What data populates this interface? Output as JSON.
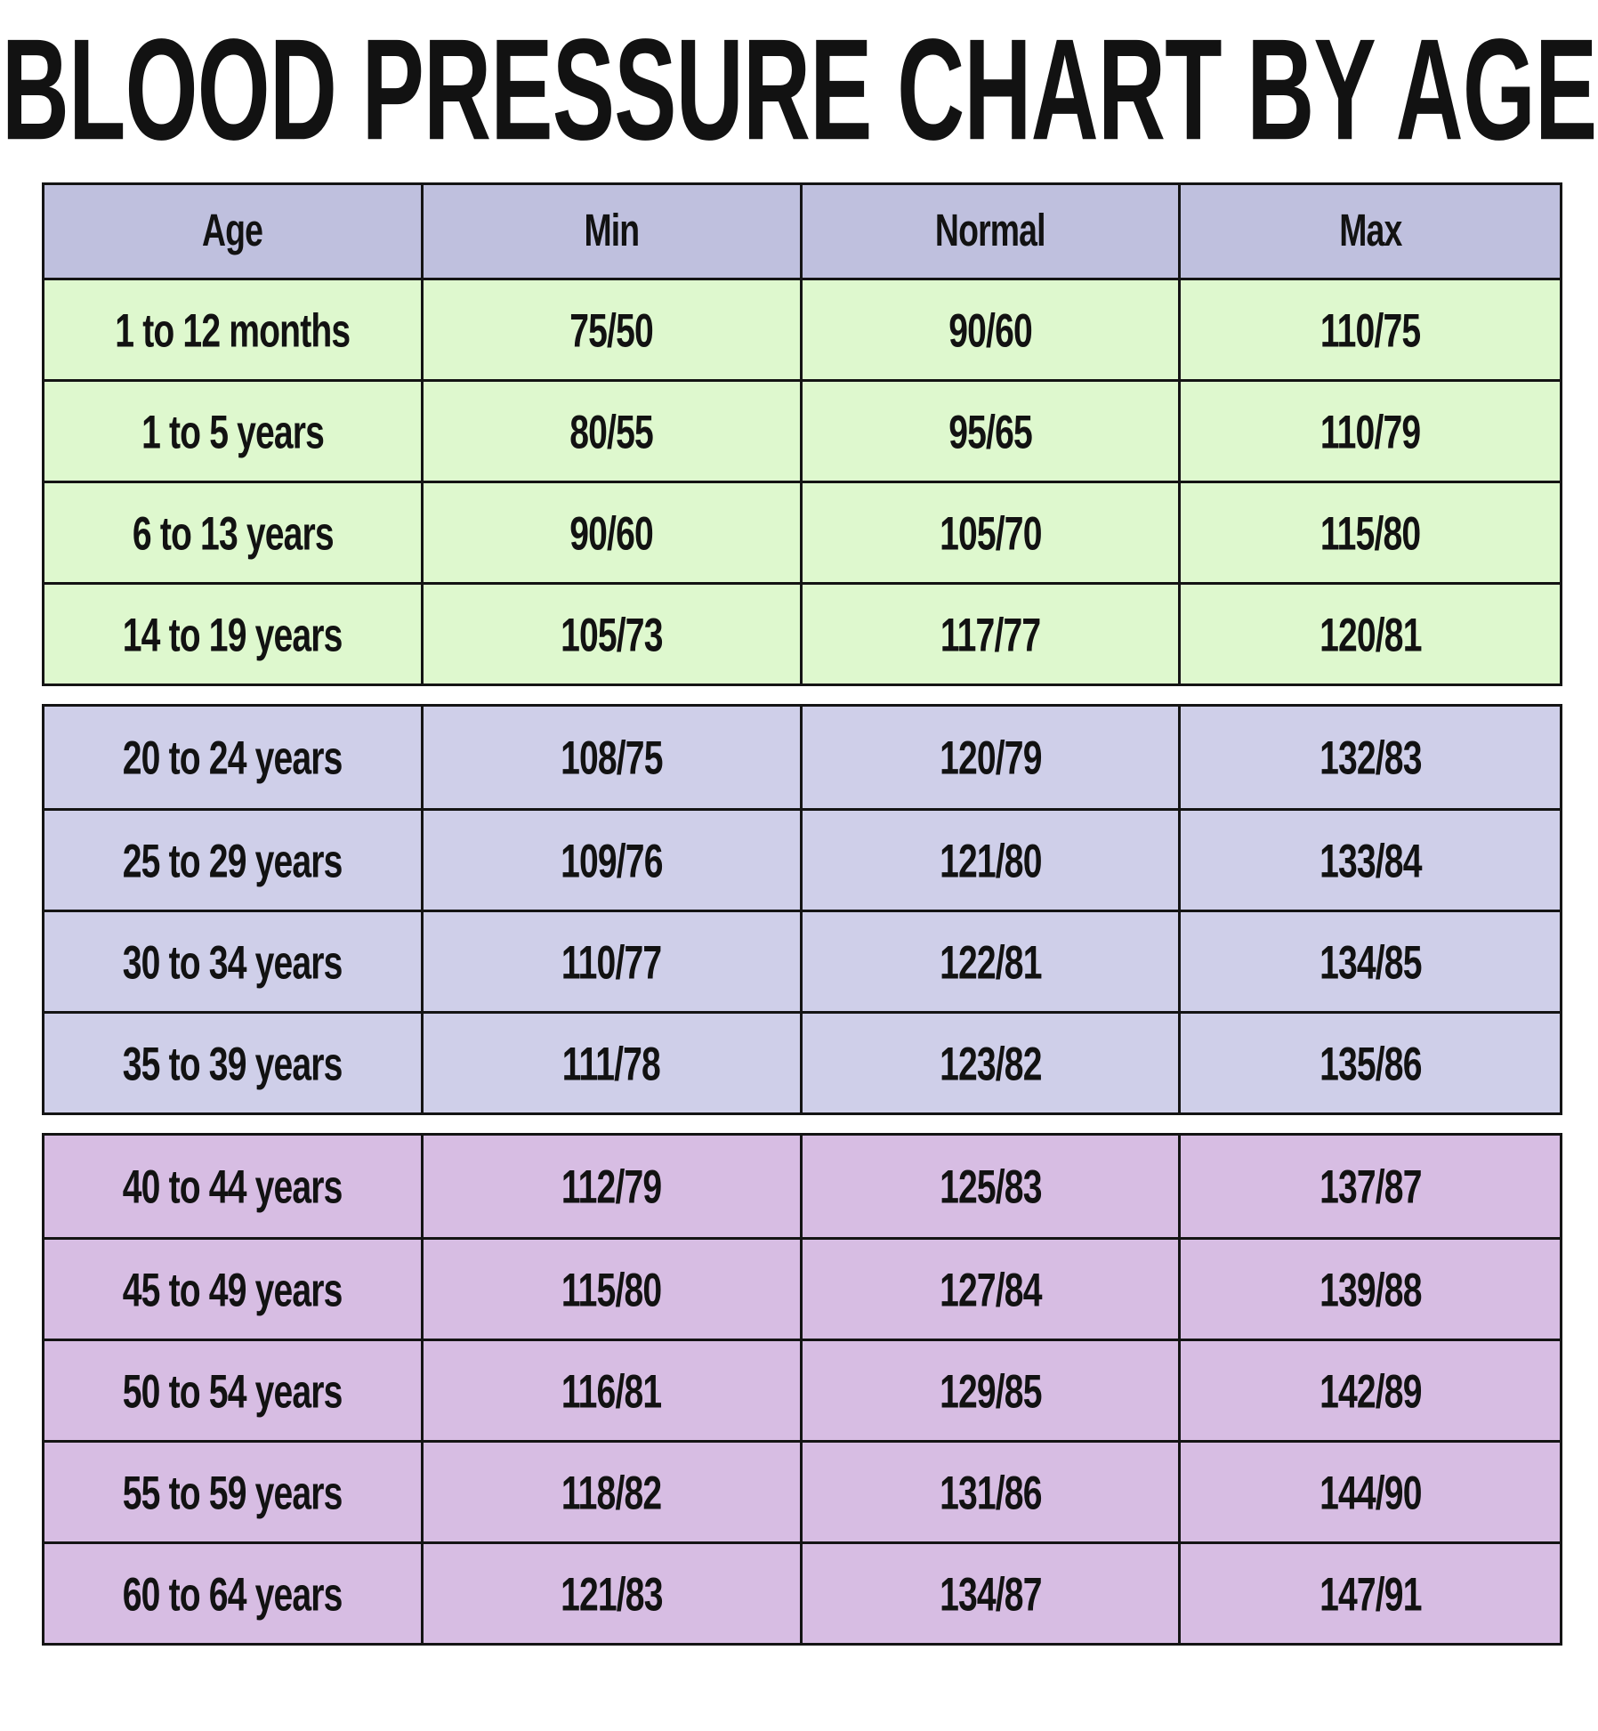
{
  "title": "BLOOD PRESSURE CHART BY AGE",
  "colors": {
    "header_bg": "#bfc0de",
    "children_bg": "#def8ce",
    "adult_bg": "#cfcfe9",
    "senior_bg": "#d7bde3",
    "border": "#141414",
    "text": "#121212",
    "page_bg": "#ffffff"
  },
  "chart_data": {
    "type": "table",
    "title": "BLOOD PRESSURE CHART BY AGE",
    "columns": [
      "Age",
      "Min",
      "Normal",
      "Max"
    ],
    "sections": [
      {
        "group": "infants-and-teens",
        "rows": [
          [
            "1 to 12 months",
            "75/50",
            "90/60",
            "110/75"
          ],
          [
            "1 to 5 years",
            "80/55",
            "95/65",
            "110/79"
          ],
          [
            "6 to 13 years",
            "90/60",
            "105/70",
            "115/80"
          ],
          [
            "14 to 19 years",
            "105/73",
            "117/77",
            "120/81"
          ]
        ]
      },
      {
        "group": "young-adults",
        "rows": [
          [
            "20 to 24 years",
            "108/75",
            "120/79",
            "132/83"
          ],
          [
            "25 to 29 years",
            "109/76",
            "121/80",
            "133/84"
          ],
          [
            "30 to 34 years",
            "110/77",
            "122/81",
            "134/85"
          ],
          [
            "35 to 39 years",
            "111/78",
            "123/82",
            "135/86"
          ]
        ]
      },
      {
        "group": "middle-aged-and-older-adults",
        "rows": [
          [
            "40 to 44 years",
            "112/79",
            "125/83",
            "137/87"
          ],
          [
            "45 to 49 years",
            "115/80",
            "127/84",
            "139/88"
          ],
          [
            "50 to 54 years",
            "116/81",
            "129/85",
            "142/89"
          ],
          [
            "55 to 59 years",
            "118/82",
            "131/86",
            "144/90"
          ],
          [
            "60 to 64 years",
            "121/83",
            "134/87",
            "147/91"
          ]
        ]
      }
    ]
  }
}
